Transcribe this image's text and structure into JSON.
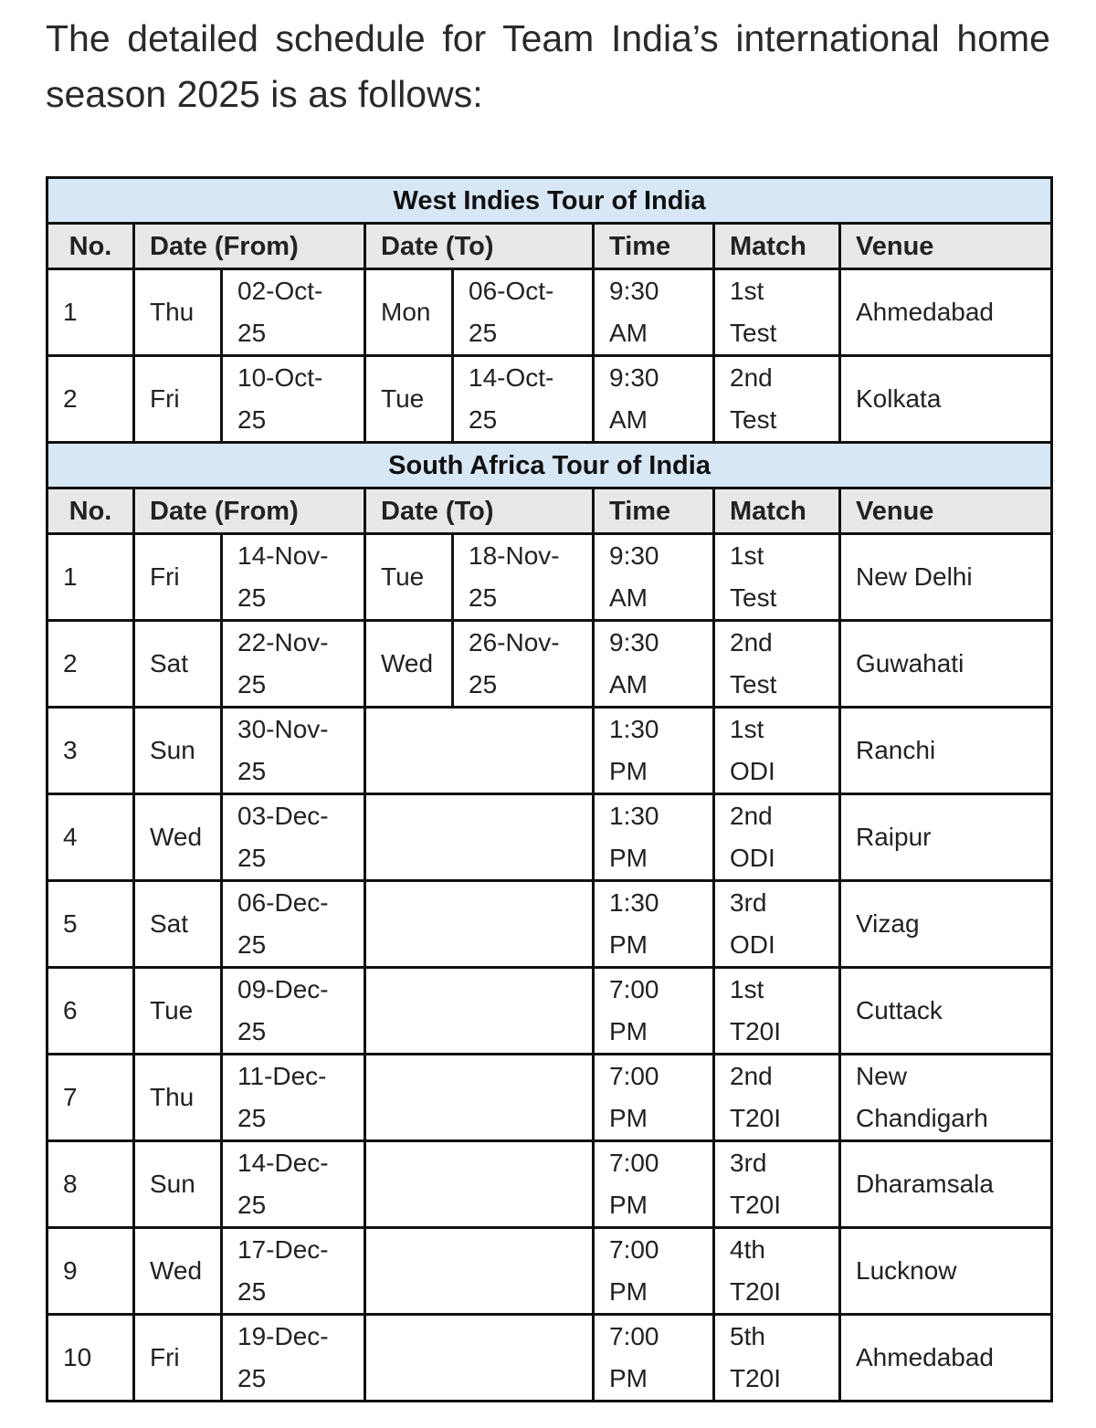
{
  "intro": "The detailed schedule for Team India’s international home season 2025 is as follows:",
  "colors": {
    "tour_header_bg": "#d7e7f6",
    "column_header_bg": "#e8e8e8",
    "border": "#111111"
  },
  "columns": {
    "no": "No.",
    "date_from": "Date (From)",
    "date_to": "Date (To)",
    "time": "Time",
    "match": "Match",
    "venue": "Venue"
  },
  "tours": [
    {
      "title": "West Indies Tour of India",
      "rows": [
        {
          "no": "1",
          "day_from": "Thu",
          "date_from": "02-Oct-25",
          "day_to": "Mon",
          "date_to": "06-Oct-25",
          "time": "9:30 AM",
          "match": "1st Test",
          "venue": "Ahmedabad"
        },
        {
          "no": "2",
          "day_from": "Fri",
          "date_from": "10-Oct-25",
          "day_to": "Tue",
          "date_to": "14-Oct-25",
          "time": "9:30 AM",
          "match": "2nd Test",
          "venue": "Kolkata"
        }
      ]
    },
    {
      "title": "South Africa Tour of India",
      "rows": [
        {
          "no": "1",
          "day_from": "Fri",
          "date_from": "14-Nov-25",
          "day_to": "Tue",
          "date_to": "18-Nov-25",
          "time": "9:30 AM",
          "match": "1st Test",
          "venue": "New Delhi"
        },
        {
          "no": "2",
          "day_from": "Sat",
          "date_from": "22-Nov-25",
          "day_to": "Wed",
          "date_to": "26-Nov-25",
          "time": "9:30 AM",
          "match": "2nd Test",
          "venue": "Guwahati"
        },
        {
          "no": "3",
          "day_from": "Sun",
          "date_from": "30-Nov-25",
          "time": "1:30 PM",
          "match": "1st ODI",
          "venue": "Ranchi"
        },
        {
          "no": "4",
          "day_from": "Wed",
          "date_from": "03-Dec-25",
          "time": "1:30 PM",
          "match": "2nd ODI",
          "venue": "Raipur"
        },
        {
          "no": "5",
          "day_from": "Sat",
          "date_from": "06-Dec-25",
          "time": "1:30 PM",
          "match": "3rd ODI",
          "venue": "Vizag"
        },
        {
          "no": "6",
          "day_from": "Tue",
          "date_from": "09-Dec-25",
          "time": "7:00 PM",
          "match": "1st T20I",
          "venue": "Cuttack"
        },
        {
          "no": "7",
          "day_from": "Thu",
          "date_from": "11-Dec-25",
          "time": "7:00 PM",
          "match": "2nd T20I",
          "venue": "New Chandigarh"
        },
        {
          "no": "8",
          "day_from": "Sun",
          "date_from": "14-Dec-25",
          "time": "7:00 PM",
          "match": "3rd T20I",
          "venue": "Dharamsala"
        },
        {
          "no": "9",
          "day_from": "Wed",
          "date_from": "17-Dec-25",
          "time": "7:00 PM",
          "match": "4th T20I",
          "venue": "Lucknow"
        },
        {
          "no": "10",
          "day_from": "Fri",
          "date_from": "19-Dec-25",
          "time": "7:00 PM",
          "match": "5th T20I",
          "venue": "Ahmedabad"
        }
      ]
    }
  ]
}
